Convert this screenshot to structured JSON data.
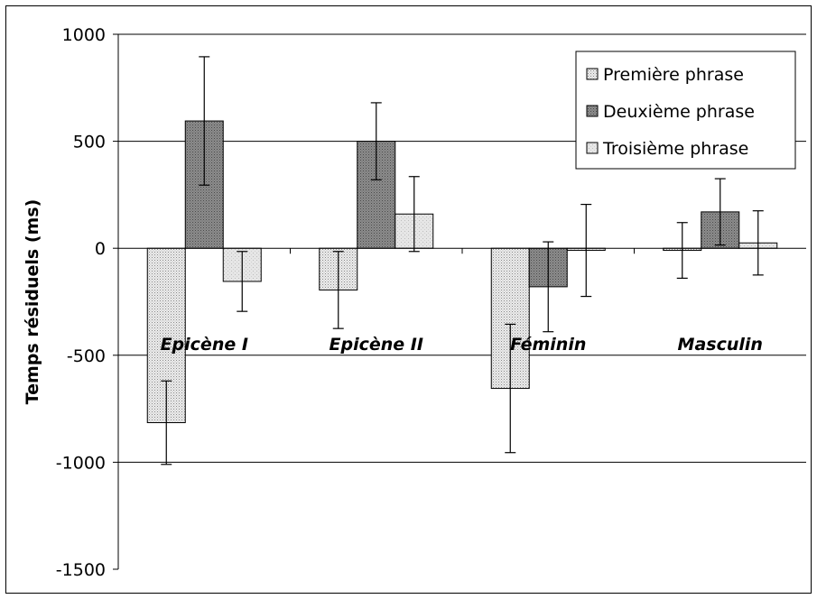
{
  "chart_data": {
    "type": "bar",
    "title": "",
    "xlabel": "",
    "ylabel": "Temps résiduels (ms)",
    "ylim": [
      -1500,
      1000
    ],
    "yticks": [
      1000,
      500,
      0,
      -500,
      -1000,
      -1500
    ],
    "ytick_labels": [
      "1000",
      "500",
      "0",
      "-500",
      "-1000",
      "-1500"
    ],
    "grid": true,
    "legend_position": "top-right",
    "categories": [
      "Epicène I",
      "Epicène II",
      "Féminin",
      "Masculin"
    ],
    "series": [
      {
        "name": "Première phrase",
        "values": [
          -815,
          -195,
          -655,
          -10
        ],
        "errors": [
          195,
          180,
          300,
          130
        ],
        "color": "#e8e8e8",
        "pattern": "dots"
      },
      {
        "name": "Deuxième phrase",
        "values": [
          595,
          500,
          -180,
          170
        ],
        "errors": [
          300,
          180,
          210,
          155
        ],
        "color": "#8c8c8c",
        "pattern": "dense"
      },
      {
        "name": "Troisième phrase",
        "values": [
          -155,
          160,
          -10,
          25
        ],
        "errors": [
          140,
          175,
          215,
          150
        ],
        "color": "#e2e2e2",
        "pattern": "fine"
      }
    ]
  }
}
